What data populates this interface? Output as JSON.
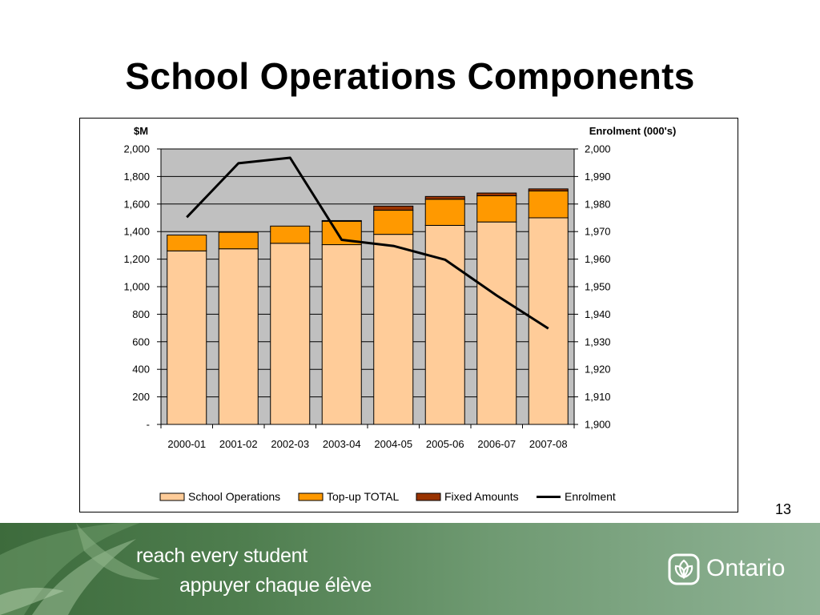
{
  "slide": {
    "title": "School Operations Components",
    "page_number": "13"
  },
  "footer": {
    "tagline_en": "reach every student",
    "tagline_fr": "appuyer chaque élève",
    "wordmark": "Ontario",
    "logo_icon": "ontario-trillium-icon"
  },
  "colors": {
    "school_operations": "#FFCC99",
    "top_up": "#FF9900",
    "fixed_amounts": "#993300",
    "enrolment": "#000000",
    "plot_background": "#C0C0C0"
  },
  "chart_data": {
    "type": "bar",
    "stacked": true,
    "categories": [
      "2000-01",
      "2001-02",
      "2002-03",
      "2003-04",
      "2004-05",
      "2005-06",
      "2006-07",
      "2007-08"
    ],
    "series": [
      {
        "name": "School Operations",
        "values": [
          1260,
          1275,
          1315,
          1305,
          1380,
          1445,
          1470,
          1500
        ]
      },
      {
        "name": "Top-up TOTAL",
        "values": [
          115,
          120,
          125,
          170,
          175,
          190,
          190,
          195
        ]
      },
      {
        "name": "Fixed Amounts",
        "values": [
          0,
          0,
          0,
          5,
          30,
          20,
          20,
          15
        ]
      },
      {
        "name": "Enrolment",
        "type": "line",
        "axis": "right",
        "values": [
          1975.2,
          1994.8,
          1996.8,
          1967.0,
          1964.8,
          1959.8,
          1946.8,
          1934.8
        ]
      }
    ],
    "left_axis": {
      "title": "$M",
      "range": [
        0,
        2000
      ],
      "tick_labels": [
        "-",
        "200",
        "400",
        "600",
        "800",
        "1,000",
        "1,200",
        "1,400",
        "1,600",
        "1,800",
        "2,000"
      ]
    },
    "right_axis": {
      "title": "Enrolment (000's)",
      "range": [
        1900,
        2000
      ],
      "tick_labels": [
        "1,900",
        "1,910",
        "1,920",
        "1,930",
        "1,940",
        "1,950",
        "1,960",
        "1,970",
        "1,980",
        "1,990",
        "2,000"
      ]
    },
    "grid": true,
    "legend_position": "bottom",
    "legend": [
      "School Operations",
      "Top-up TOTAL",
      "Fixed Amounts",
      "Enrolment"
    ]
  }
}
